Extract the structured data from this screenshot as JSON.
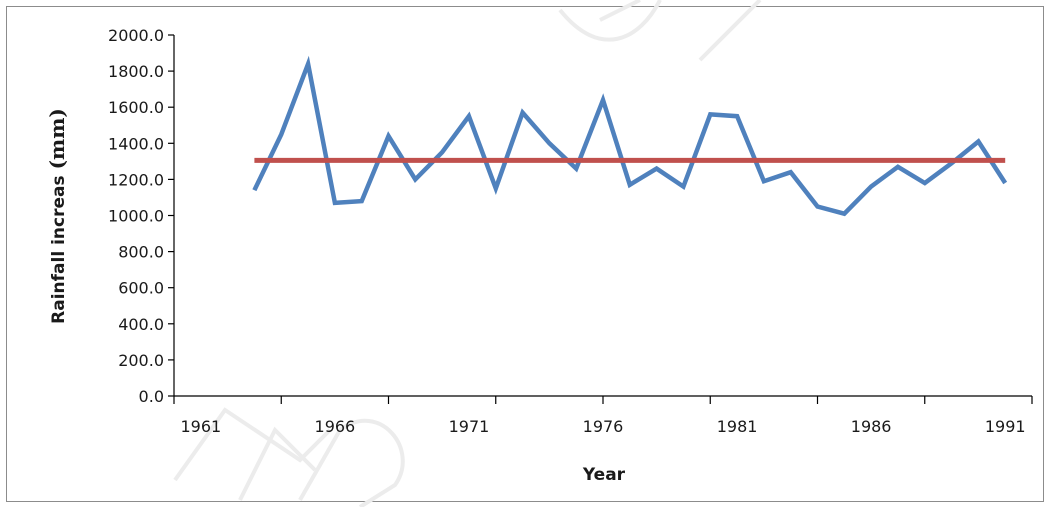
{
  "chart_data": {
    "type": "line",
    "xlabel": "Year",
    "ylabel": "Rainfall increas",
    "ylabel_unit": "(mm)",
    "ylim": [
      0,
      2000
    ],
    "y_ticks": [
      "0.0",
      "200.0",
      "400.0",
      "600.0",
      "800.0",
      "1000.0",
      "1200.0",
      "1400.0",
      "1600.0",
      "1800.0",
      "2000.0"
    ],
    "x_ticks": [
      "1961",
      "1966",
      "1971",
      "1976",
      "1981",
      "1986",
      "1991"
    ],
    "xlim": [
      1960,
      1992
    ],
    "grid": false,
    "series": [
      {
        "color": "#4f81bd",
        "x": [
          1963,
          1964,
          1965,
          1966,
          1967,
          1968,
          1969,
          1970,
          1971,
          1972,
          1973,
          1974,
          1975,
          1976,
          1977,
          1978,
          1979,
          1980,
          1981,
          1982,
          1983,
          1984,
          1985,
          1986,
          1987,
          1988,
          1989,
          1990,
          1991
        ],
        "values": [
          1140,
          1450,
          1840,
          1070,
          1080,
          1440,
          1200,
          1350,
          1550,
          1150,
          1570,
          1400,
          1260,
          1640,
          1170,
          1260,
          1160,
          1560,
          1550,
          1190,
          1240,
          1050,
          1010,
          1160,
          1270,
          1180,
          1290,
          1410,
          1180
        ]
      },
      {
        "color": "#c0504d",
        "x": [
          1963,
          1991
        ],
        "values": [
          1305,
          1305
        ]
      }
    ]
  }
}
